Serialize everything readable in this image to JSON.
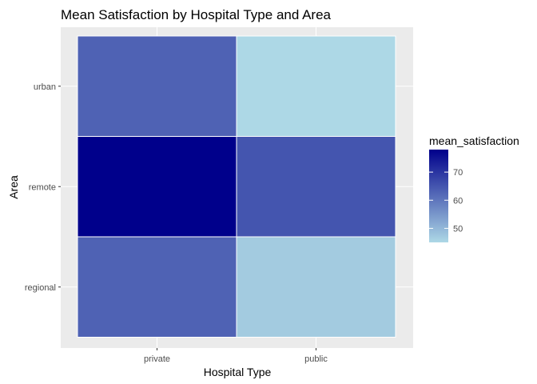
{
  "chart_data": {
    "type": "heatmap",
    "title": "Mean Satisfaction by Hospital Type and Area",
    "xlabel": "Hospital Type",
    "ylabel": "Area",
    "x_categories": [
      "private",
      "public"
    ],
    "y_categories": [
      "regional",
      "remote",
      "urban"
    ],
    "cells": [
      {
        "x": "private",
        "y": "urban",
        "value": 63
      },
      {
        "x": "public",
        "y": "urban",
        "value": 45
      },
      {
        "x": "private",
        "y": "remote",
        "value": 78
      },
      {
        "x": "public",
        "y": "remote",
        "value": 65
      },
      {
        "x": "private",
        "y": "regional",
        "value": 63
      },
      {
        "x": "public",
        "y": "regional",
        "value": 47
      }
    ],
    "color_scale": {
      "low": "#ADD8E6",
      "high": "#00008B",
      "min": 45,
      "max": 78
    },
    "legend": {
      "title": "mean_satisfaction",
      "ticks": [
        50,
        60,
        70
      ],
      "tick_labels": [
        "50",
        "60",
        "70"
      ],
      "position": "right"
    },
    "grid": true,
    "panel_background": "#EBEBEB",
    "tile_border": "#FFFFFF"
  }
}
